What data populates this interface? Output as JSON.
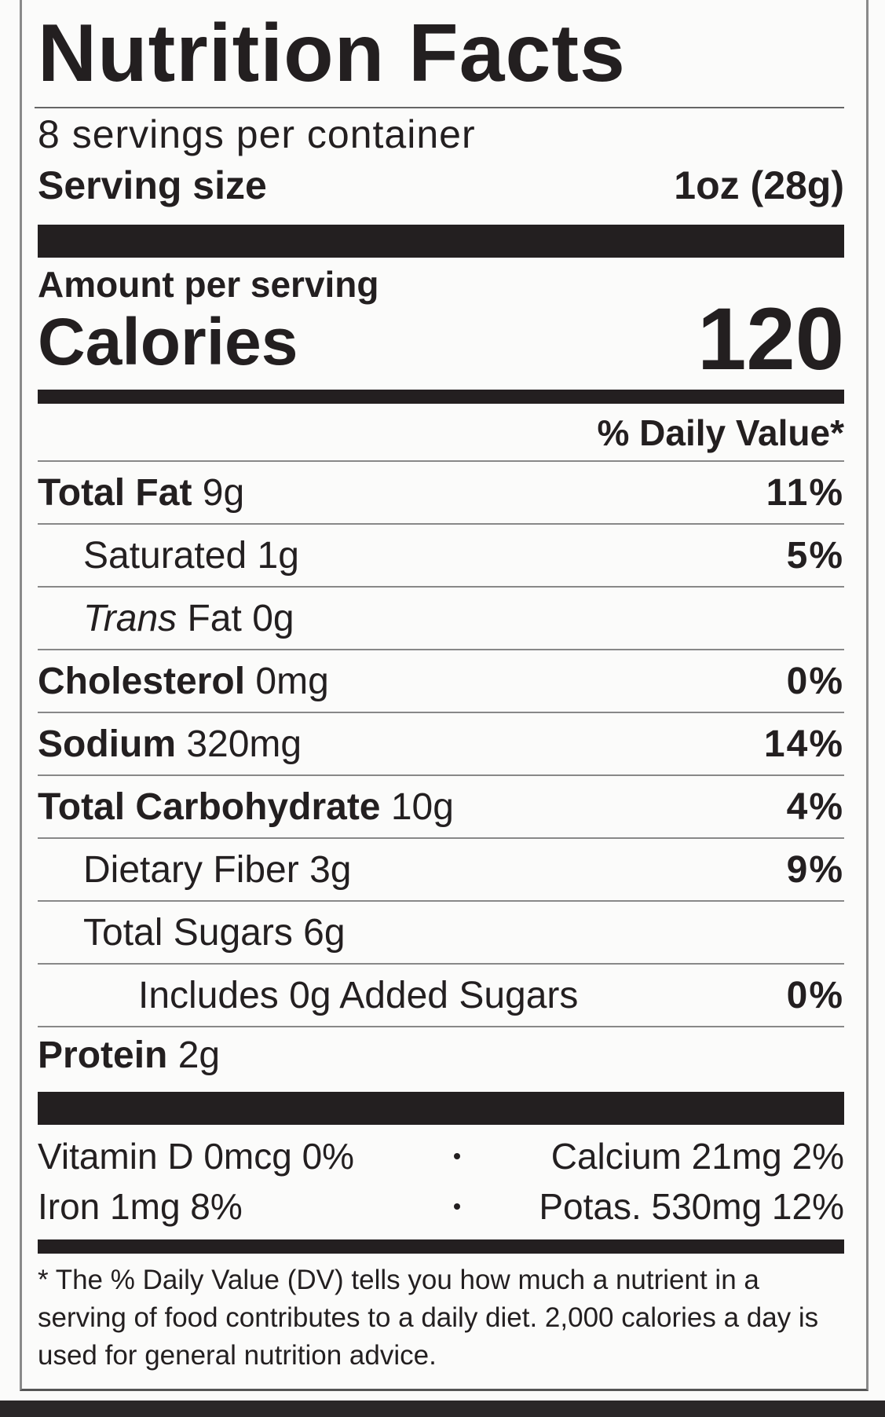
{
  "title": "Nutrition Facts",
  "servings": "8 servings per container",
  "serving_size": {
    "label": "Serving size",
    "value": "1oz (28g)"
  },
  "amount_per_serving": "Amount per serving",
  "calories": {
    "label": "Calories",
    "value": "120"
  },
  "dv_header": "% Daily Value*",
  "nutrients": [
    {
      "name": "Total Fat",
      "amount": "9g",
      "dv": "11%",
      "bold": true,
      "indent": 0
    },
    {
      "name": "Saturated",
      "amount": "1g",
      "dv": "5%",
      "bold": false,
      "indent": 1
    },
    {
      "italic_prefix": "Trans",
      "name": "Fat",
      "amount": "0g",
      "bold": false,
      "indent": 1
    },
    {
      "name": "Cholesterol",
      "amount": "0mg",
      "dv": "0%",
      "bold": true,
      "indent": 0
    },
    {
      "name": "Sodium",
      "amount": "320mg",
      "dv": "14%",
      "bold": true,
      "indent": 0
    },
    {
      "name": "Total Carbohydrate",
      "amount": "10g",
      "dv": "4%",
      "bold": true,
      "indent": 0
    },
    {
      "name": "Dietary Fiber",
      "amount": "3g",
      "dv": "9%",
      "bold": false,
      "indent": 1
    },
    {
      "name": "Total Sugars",
      "amount": "6g",
      "bold": false,
      "indent": 1
    },
    {
      "name": "Includes 0g Added Sugars",
      "dv": "0%",
      "bold": false,
      "indent": 2
    },
    {
      "name": "Protein",
      "amount": "2g",
      "bold": true,
      "indent": 0
    }
  ],
  "vitamins": [
    [
      "Vitamin D 0mcg 0%",
      "Calcium 21mg 2%"
    ],
    [
      "Iron 1mg 8%",
      "Potas. 530mg 12%"
    ]
  ],
  "footnote": "* The % Daily Value (DV) tells you how much a nutrient in a serving of food contributes to a daily diet. 2,000 calories a day is used for general nutrition advice."
}
